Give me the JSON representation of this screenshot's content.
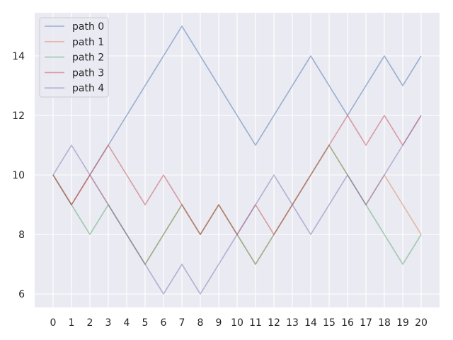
{
  "chart_data": {
    "type": "line",
    "title": "",
    "xlabel": "",
    "ylabel": "",
    "xlim": [
      -1,
      21
    ],
    "ylim": [
      5.55,
      15.45
    ],
    "xticks": [
      0,
      1,
      2,
      3,
      4,
      5,
      6,
      7,
      8,
      9,
      10,
      11,
      12,
      13,
      14,
      15,
      16,
      17,
      18,
      19,
      20
    ],
    "yticks": [
      6,
      8,
      10,
      12,
      14
    ],
    "grid": true,
    "legend_position": "top-left",
    "x": [
      0,
      1,
      2,
      3,
      4,
      5,
      6,
      7,
      8,
      9,
      10,
      11,
      12,
      13,
      14,
      15,
      16,
      17,
      18,
      19,
      20
    ],
    "series": [
      {
        "name": "path 0",
        "color": "#4c72b0",
        "values": [
          10,
          9,
          10,
          11,
          12,
          13,
          14,
          15,
          14,
          13,
          12,
          11,
          12,
          13,
          14,
          13,
          12,
          13,
          14,
          13,
          14
        ]
      },
      {
        "name": "path 1",
        "color": "#dd8452",
        "values": [
          10,
          9,
          10,
          9,
          8,
          7,
          8,
          9,
          8,
          9,
          8,
          7,
          8,
          9,
          10,
          11,
          10,
          9,
          10,
          9,
          8
        ]
      },
      {
        "name": "path 2",
        "color": "#55a868",
        "values": [
          10,
          9,
          8,
          9,
          8,
          7,
          8,
          9,
          8,
          9,
          8,
          7,
          8,
          9,
          10,
          11,
          10,
          9,
          8,
          7,
          8
        ]
      },
      {
        "name": "path 3",
        "color": "#c44e52",
        "values": [
          10,
          9,
          10,
          11,
          10,
          9,
          10,
          9,
          8,
          9,
          8,
          9,
          8,
          9,
          10,
          11,
          12,
          11,
          12,
          11,
          12
        ]
      },
      {
        "name": "path 4",
        "color": "#8172b3",
        "values": [
          10,
          11,
          10,
          9,
          8,
          7,
          6,
          7,
          6,
          7,
          8,
          9,
          10,
          9,
          8,
          9,
          10,
          9,
          10,
          11,
          12
        ]
      }
    ]
  }
}
